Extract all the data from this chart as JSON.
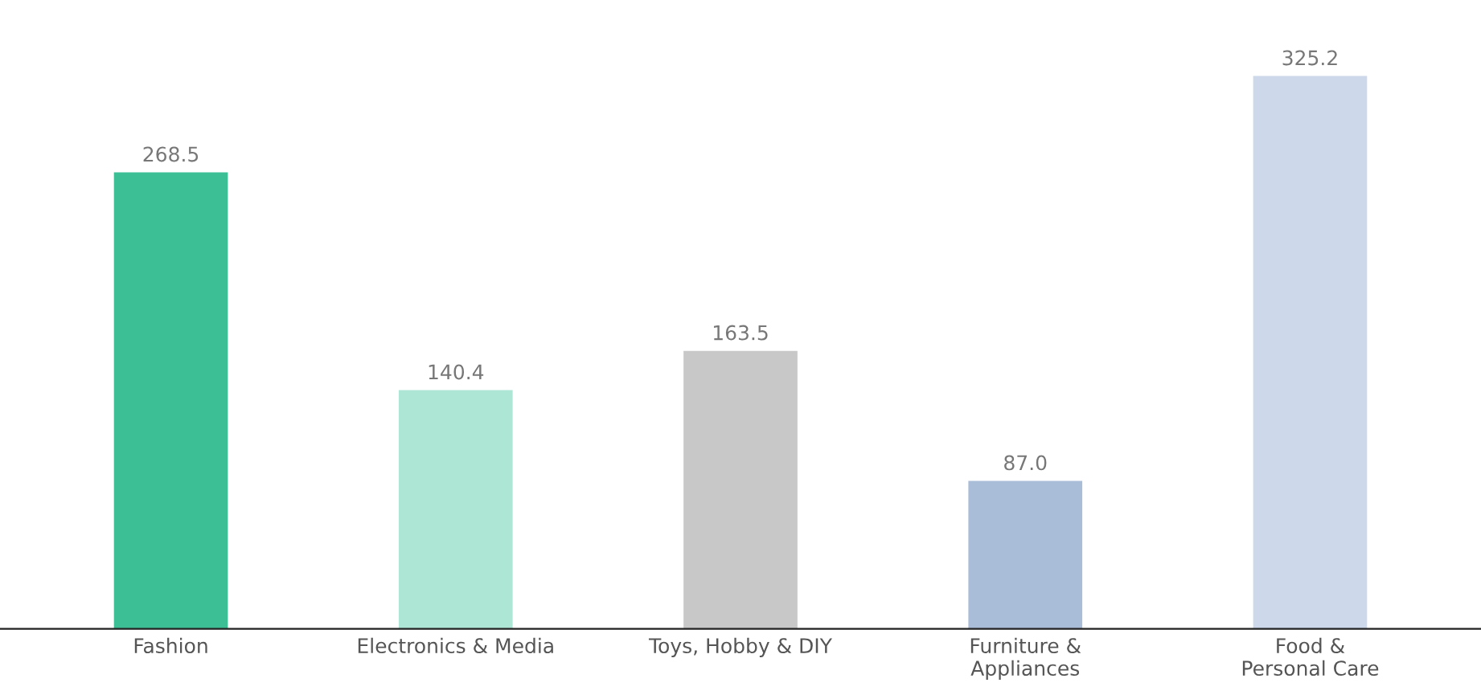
{
  "chart_data": {
    "type": "bar",
    "categories": [
      "Fashion",
      "Electronics & Media",
      "Toys, Hobby & DIY",
      "Furniture &\nAppliances",
      "Food &\nPersonal Care"
    ],
    "values": [
      268.5,
      140.4,
      163.5,
      87.0,
      325.2
    ],
    "value_labels": [
      "268.5",
      "140.4",
      "163.5",
      "87.0",
      "325.2"
    ],
    "colors": [
      "#3dbf96",
      "#aee6d6",
      "#c8c8c8",
      "#a9bdd9",
      "#cdd9ea"
    ],
    "grid": false,
    "legend": false
  }
}
